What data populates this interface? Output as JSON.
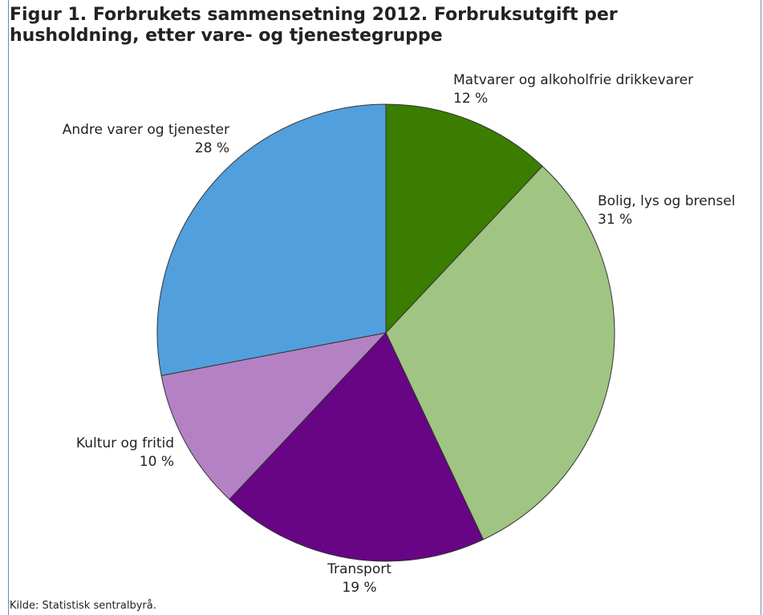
{
  "chart_data": {
    "type": "pie",
    "title": "Figur 1. Forbrukets sammensetning 2012. Forbruksutgift per husholdning, etter vare- og tjenestegruppe",
    "categories": [
      "Matvarer og alkoholfrie drikkevarer",
      "Bolig, lys og brensel",
      "Transport",
      "Kultur og fritid",
      "Andre varer og tjenester"
    ],
    "values": [
      12,
      31,
      19,
      10,
      28
    ],
    "value_labels": [
      "12 %",
      "31 %",
      "19 %",
      "10 %",
      "28 %"
    ],
    "colors": [
      "#3a7d00",
      "#a0c482",
      "#670584",
      "#b482c4",
      "#529fdd"
    ],
    "source": "Kilde: Statistisk sentralbyrå."
  }
}
